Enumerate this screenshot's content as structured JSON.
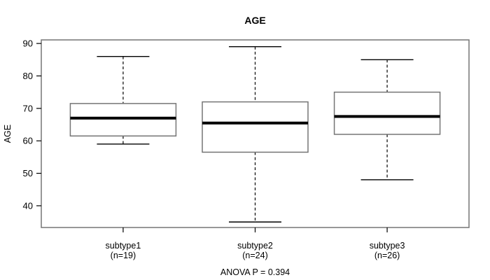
{
  "colors": {
    "ink": "#000000",
    "box_border": "#757575",
    "background": "#ffffff"
  },
  "chart_data": {
    "type": "boxplot",
    "title": "AGE",
    "ylabel": "AGE",
    "annotation": "ANOVA P = 0.394",
    "anova_p": 0.394,
    "categories": [
      "subtype1",
      "subtype2",
      "subtype3"
    ],
    "category_sublabels": [
      "(n=19)",
      "(n=24)",
      "(n=26)"
    ],
    "n": [
      19,
      24,
      26
    ],
    "series": [
      {
        "name": "subtype1",
        "whisker_low": 59,
        "q1": 61.5,
        "median": 67,
        "q3": 71.5,
        "whisker_high": 86
      },
      {
        "name": "subtype2",
        "whisker_low": 35,
        "q1": 56.5,
        "median": 65.5,
        "q3": 72,
        "whisker_high": 89
      },
      {
        "name": "subtype3",
        "whisker_low": 48,
        "q1": 62,
        "median": 67.5,
        "q3": 75,
        "whisker_high": 85
      }
    ],
    "outliers": [],
    "yticks": [
      40,
      50,
      60,
      70,
      80,
      90
    ],
    "ylim": [
      33.3,
      91.1
    ],
    "grid": false,
    "legend": "none"
  }
}
